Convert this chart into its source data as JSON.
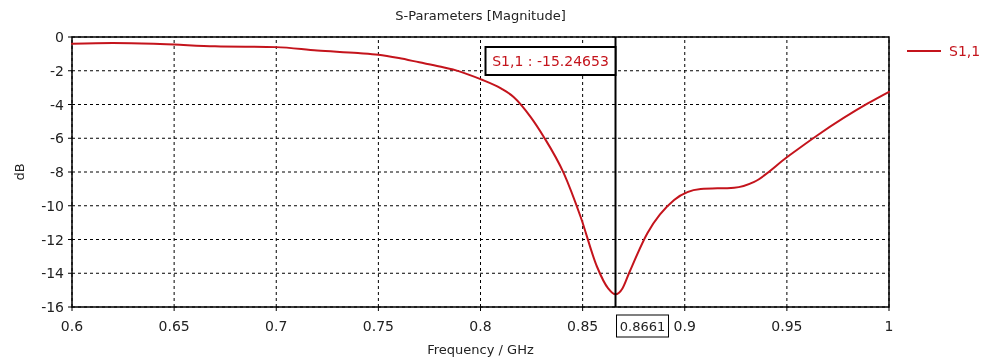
{
  "chart_data": {
    "type": "line",
    "title": "S-Parameters [Magnitude]",
    "xlabel": "Frequency / GHz",
    "ylabel": "dB",
    "series": [
      {
        "name": "S1,1",
        "color": "#c4141c",
        "x": [
          0.6,
          0.62,
          0.64,
          0.65,
          0.67,
          0.7,
          0.72,
          0.74,
          0.75,
          0.76,
          0.77,
          0.78,
          0.79,
          0.8,
          0.81,
          0.8162,
          0.8245,
          0.831,
          0.8408,
          0.849,
          0.857,
          0.8625,
          0.8661,
          0.8695,
          0.8727,
          0.8817,
          0.8948,
          0.9078,
          0.9242,
          0.934,
          0.9503,
          0.965,
          0.9896,
          1.0
        ],
        "values": [
          -0.4,
          -0.35,
          -0.4,
          -0.45,
          -0.55,
          -0.6,
          -0.8,
          -0.95,
          -1.05,
          -1.25,
          -1.5,
          -1.75,
          -2.05,
          -2.5,
          -3.05,
          -3.55,
          -4.73,
          -5.92,
          -8.08,
          -10.65,
          -13.6,
          -14.9,
          -15.25,
          -14.9,
          -14.0,
          -11.63,
          -9.66,
          -9.01,
          -8.93,
          -8.58,
          -7.1,
          -5.82,
          -3.94,
          -3.25
        ]
      }
    ],
    "xlim": [
      0.6,
      1
    ],
    "xticks": [
      0.6,
      0.65,
      0.7,
      0.75,
      0.8,
      0.85,
      0.9,
      0.95,
      1
    ],
    "ylim": [
      -16,
      0
    ],
    "yticks": [
      0,
      -2,
      -4,
      -6,
      -8,
      -10,
      -12,
      -14,
      -16
    ],
    "grid": true,
    "legend": "top right",
    "marker": "none",
    "line_style": "solid",
    "ref_lines": [
      {
        "axis": "x",
        "value": 0.8661,
        "label": "0.8661",
        "color": "#000000"
      }
    ],
    "annotations": [
      "S1,1 : -15.24653"
    ]
  }
}
